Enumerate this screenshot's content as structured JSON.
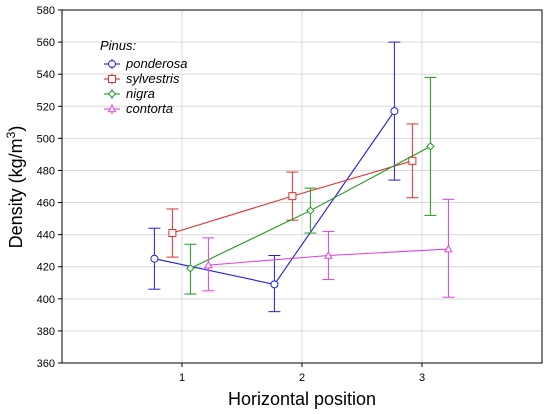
{
  "chart_data": {
    "type": "line",
    "title": "",
    "xlabel": "Horizontal position",
    "ylabel": "Density (kg/m",
    "ylabel_sup": "3",
    "ylabel_end": ")",
    "x_categories": [
      "1",
      "2",
      "3"
    ],
    "xlim": [
      0,
      4
    ],
    "ylim": [
      360,
      580
    ],
    "yticks": [
      360,
      380,
      400,
      420,
      440,
      460,
      480,
      500,
      520,
      540,
      560,
      580
    ],
    "grid": true,
    "legend": {
      "title": "Pinus:",
      "position": "top-left"
    },
    "series": [
      {
        "name": "ponderosa",
        "color": "#1f1fdc",
        "marker": "circle",
        "x": [
          0.77,
          1.77,
          2.77
        ],
        "y": [
          425,
          409,
          517
        ],
        "lower": [
          406,
          392,
          474
        ],
        "upper": [
          444,
          427,
          560
        ]
      },
      {
        "name": "sylvestris",
        "color": "#e03030",
        "marker": "square",
        "x": [
          0.92,
          1.92,
          2.92
        ],
        "y": [
          441,
          464,
          486
        ],
        "lower": [
          426,
          449,
          463
        ],
        "upper": [
          456,
          479,
          509
        ]
      },
      {
        "name": "nigra",
        "color": "#1e9a1e",
        "marker": "diamond",
        "x": [
          1.07,
          2.07,
          3.07
        ],
        "y": [
          419,
          455,
          495
        ],
        "lower": [
          403,
          441,
          452
        ],
        "upper": [
          434,
          469,
          538
        ]
      },
      {
        "name": "contorta",
        "color": "#e040e0",
        "marker": "triangle",
        "x": [
          1.22,
          2.22,
          3.22
        ],
        "y": [
          421,
          427,
          431
        ],
        "lower": [
          405,
          412,
          401
        ],
        "upper": [
          438,
          442,
          462
        ]
      }
    ]
  }
}
